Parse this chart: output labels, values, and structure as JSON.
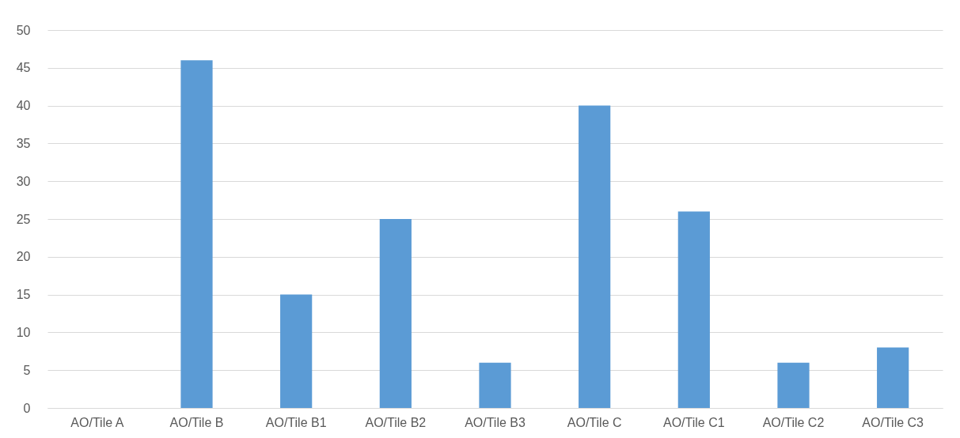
{
  "chart_data": {
    "type": "bar",
    "categories": [
      "AO/Tile A",
      "AO/Tile B",
      "AO/Tile B1",
      "AO/Tile B2",
      "AO/Tile B3",
      "AO/Tile C",
      "AO/Tile C1",
      "AO/Tile C2",
      "AO/Tile C3"
    ],
    "values": [
      0,
      46,
      15,
      25,
      6,
      40,
      26,
      6,
      8
    ],
    "color": "#5b9bd5",
    "ylim": [
      0,
      50
    ],
    "yticks": [
      0,
      5,
      10,
      15,
      20,
      25,
      30,
      35,
      40,
      45,
      50
    ],
    "grid": "y"
  }
}
